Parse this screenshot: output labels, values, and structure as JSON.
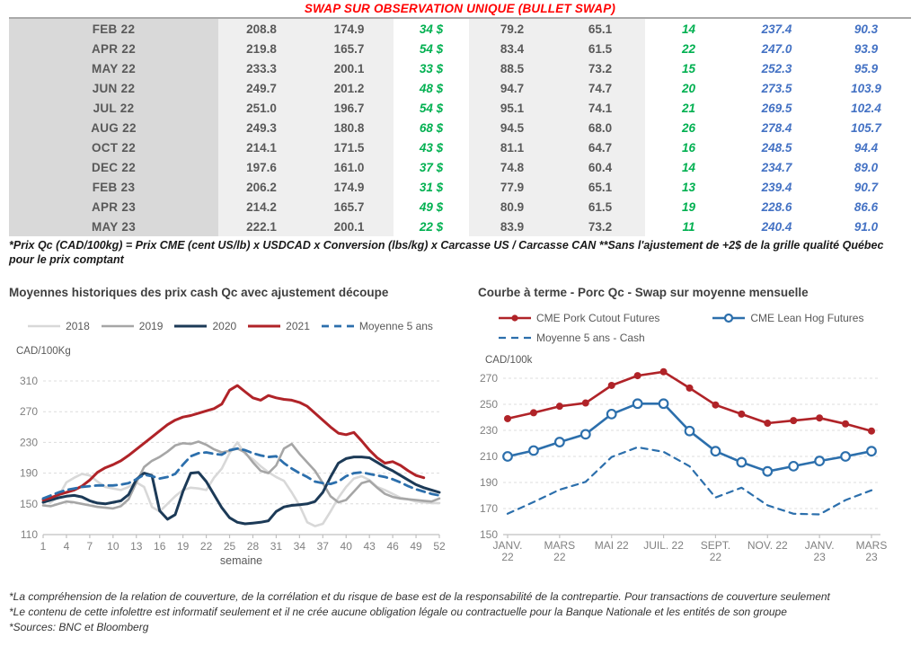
{
  "title": "SWAP SUR OBSERVATION UNIQUE (BULLET SWAP)",
  "colors": {
    "title_red": "#FF0000",
    "green": "#00B050",
    "blue_numbers": "#4472C4",
    "table_text": "#595959",
    "month_col_bg": "#D9D9D9",
    "shade_col_bg": "#EFEFEF",
    "axis_gray": "#808080",
    "grid_gray": "#DCDCDC"
  },
  "table": {
    "rows": [
      [
        "FEB 22",
        "208.8",
        "174.9",
        "34 $",
        "79.2",
        "65.1",
        "14",
        "237.4",
        "90.3"
      ],
      [
        "APR 22",
        "219.8",
        "165.7",
        "54 $",
        "83.4",
        "61.5",
        "22",
        "247.0",
        "93.9"
      ],
      [
        "MAY 22",
        "233.3",
        "200.1",
        "33 $",
        "88.5",
        "73.2",
        "15",
        "252.3",
        "95.9"
      ],
      [
        "JUN 22",
        "249.7",
        "201.2",
        "48 $",
        "94.7",
        "74.7",
        "20",
        "273.5",
        "103.9"
      ],
      [
        "JUL 22",
        "251.0",
        "196.7",
        "54 $",
        "95.1",
        "74.1",
        "21",
        "269.5",
        "102.4"
      ],
      [
        "AUG 22",
        "249.3",
        "180.8",
        "68 $",
        "94.5",
        "68.0",
        "26",
        "278.4",
        "105.7"
      ],
      [
        "OCT 22",
        "214.1",
        "171.5",
        "43 $",
        "81.1",
        "64.7",
        "16",
        "248.5",
        "94.4"
      ],
      [
        "DEC 22",
        "197.6",
        "161.0",
        "37 $",
        "74.8",
        "60.4",
        "14",
        "234.7",
        "89.0"
      ],
      [
        "FEB 23",
        "206.2",
        "174.9",
        "31 $",
        "77.9",
        "65.1",
        "13",
        "239.4",
        "90.7"
      ],
      [
        "APR 23",
        "214.2",
        "165.7",
        "49 $",
        "80.9",
        "61.5",
        "19",
        "228.6",
        "86.6"
      ],
      [
        "MAY 23",
        "222.1",
        "200.1",
        "22 $",
        "83.9",
        "73.2",
        "11",
        "240.4",
        "91.0"
      ]
    ],
    "footnote": "*Prix Qc (CAD/100kg) = Prix CME (cent US/lb) x USDCAD x Conversion (lbs/kg) x Carcasse US / Carcasse CAN **Sans l'ajustement de +2$ de la grille qualité Québec pour le prix comptant"
  },
  "chart_data": [
    {
      "type": "line",
      "title": "Moyennes historiques des prix cash Qc avec ajustement découpe",
      "ylabel": "CAD/100Kg",
      "xlabel": "semaine",
      "ylim": [
        110,
        310
      ],
      "yticks": [
        110,
        150,
        190,
        230,
        270,
        310
      ],
      "xticks": [
        1,
        4,
        7,
        10,
        13,
        16,
        19,
        22,
        25,
        28,
        31,
        34,
        37,
        40,
        43,
        46,
        49,
        52
      ],
      "grid": "horizontal-dashed",
      "legend_position": "top-center",
      "series": [
        {
          "name": "2018",
          "color": "#D8D8D8",
          "style": "solid",
          "marker": "none",
          "width": 2.6,
          "values": [
            157,
            152,
            160,
            178,
            184,
            189,
            187,
            179,
            172,
            170,
            168,
            172,
            178,
            172,
            146,
            140,
            150,
            160,
            168,
            171,
            170,
            168,
            184,
            196,
            216,
            230,
            215,
            208,
            199,
            191,
            185,
            180,
            165,
            148,
            126,
            121,
            124,
            140,
            158,
            172,
            183,
            186,
            181,
            172,
            168,
            163,
            158,
            156,
            153,
            152,
            151,
            151
          ]
        },
        {
          "name": "2019",
          "color": "#A6A6A6",
          "style": "solid",
          "marker": "none",
          "width": 2.6,
          "values": [
            148,
            147,
            150,
            153,
            152,
            150,
            148,
            146,
            145,
            144,
            147,
            156,
            178,
            198,
            206,
            211,
            218,
            226,
            229,
            228,
            231,
            227,
            221,
            217,
            219,
            222,
            217,
            204,
            193,
            190,
            200,
            222,
            228,
            215,
            204,
            193,
            177,
            160,
            152,
            155,
            166,
            177,
            180,
            171,
            163,
            159,
            157,
            156,
            155,
            154,
            153,
            157
          ]
        },
        {
          "name": "2020",
          "color": "#1C3A57",
          "style": "solid",
          "marker": "none",
          "width": 3,
          "values": [
            152,
            155,
            158,
            160,
            161,
            159,
            154,
            151,
            150,
            152,
            154,
            162,
            182,
            190,
            187,
            141,
            130,
            136,
            166,
            190,
            191,
            179,
            162,
            145,
            132,
            126,
            124,
            125,
            126,
            128,
            140,
            146,
            148,
            149,
            150,
            153,
            165,
            185,
            203,
            209,
            211,
            211,
            210,
            204,
            198,
            193,
            187,
            181,
            175,
            171,
            168,
            165
          ]
        },
        {
          "name": "2021",
          "color": "#B02328",
          "style": "solid",
          "marker": "none",
          "width": 3,
          "values": [
            155,
            158,
            162,
            165,
            168,
            173,
            181,
            191,
            197,
            201,
            206,
            213,
            221,
            229,
            237,
            245,
            253,
            259,
            263,
            265,
            268,
            271,
            274,
            280,
            298,
            304,
            296,
            288,
            285,
            291,
            288,
            286,
            285,
            282,
            277,
            268,
            259,
            250,
            242,
            240,
            243,
            232,
            220,
            210,
            203,
            205,
            200,
            193,
            187,
            184
          ]
        },
        {
          "name": "Moyenne 5 ans",
          "color": "#2C6FAC",
          "style": "dashed",
          "marker": "none",
          "width": 2.8,
          "values": [
            157,
            161,
            165,
            168,
            170,
            172,
            173,
            174,
            174,
            174,
            175,
            177,
            182,
            188,
            186,
            183,
            185,
            189,
            201,
            212,
            216,
            217,
            215,
            214,
            220,
            222,
            220,
            216,
            213,
            211,
            212,
            203,
            196,
            190,
            185,
            179,
            177,
            176,
            179,
            186,
            190,
            191,
            189,
            187,
            185,
            182,
            178,
            173,
            169,
            166,
            163,
            161
          ]
        }
      ]
    },
    {
      "type": "line",
      "title": "Courbe à terme - Porc Qc - Swap sur moyenne mensuelle",
      "ylabel": "CAD/100k",
      "xlabel": "",
      "ylim": [
        150,
        270
      ],
      "yticks": [
        150,
        170,
        190,
        210,
        230,
        250,
        270
      ],
      "n_points": 15,
      "xticks": [
        {
          "index": 0,
          "lines": [
            "JANV.",
            "22"
          ]
        },
        {
          "index": 2,
          "lines": [
            "MARS",
            "22"
          ]
        },
        {
          "index": 4,
          "lines": [
            "MAI 22"
          ]
        },
        {
          "index": 6,
          "lines": [
            "JUIL. 22"
          ]
        },
        {
          "index": 8,
          "lines": [
            "SEPT.",
            "22"
          ]
        },
        {
          "index": 10,
          "lines": [
            "NOV. 22"
          ]
        },
        {
          "index": 12,
          "lines": [
            "JANV.",
            "23"
          ]
        },
        {
          "index": 14,
          "lines": [
            "MARS",
            "23"
          ]
        }
      ],
      "grid": "horizontal-dashed",
      "legend_position": "top-left",
      "series": [
        {
          "name": "CME Pork Cutout Futures",
          "color": "#B02328",
          "style": "solid",
          "marker": "filled-circle",
          "width": 2.6,
          "values": [
            239,
            243.5,
            248.5,
            251,
            264.5,
            272,
            275,
            262.5,
            249.5,
            242.5,
            235.5,
            237.5,
            239.5,
            235,
            229.5
          ]
        },
        {
          "name": "CME Lean Hog Futures",
          "color": "#2C6FAC",
          "style": "solid",
          "marker": "open-circle",
          "width": 2.6,
          "values": [
            210,
            214.5,
            221,
            227,
            242.5,
            250.5,
            250.5,
            229.5,
            214,
            205.5,
            198.5,
            202.5,
            206.5,
            210,
            214
          ]
        },
        {
          "name": "Moyenne 5 ans - Cash",
          "color": "#2C6FAC",
          "style": "dashed",
          "marker": "none",
          "width": 2.2,
          "values": [
            166,
            175,
            184.5,
            190.5,
            209.5,
            217,
            213.5,
            202.5,
            178.5,
            186,
            172.5,
            166,
            165.5,
            176.5,
            184
          ]
        }
      ]
    }
  ],
  "footnotes": [
    "*La compréhension de la relation de couverture, de la corrélation et du risque de base est de la responsabilité de la contrepartie. Pour transactions de couverture seulement",
    "*Le contenu de cette infolettre est informatif seulement et il ne crée aucune obligation légale ou contractuelle pour la Banque Nationale et les entités de son groupe",
    "*Sources: BNC et Bloomberg"
  ]
}
